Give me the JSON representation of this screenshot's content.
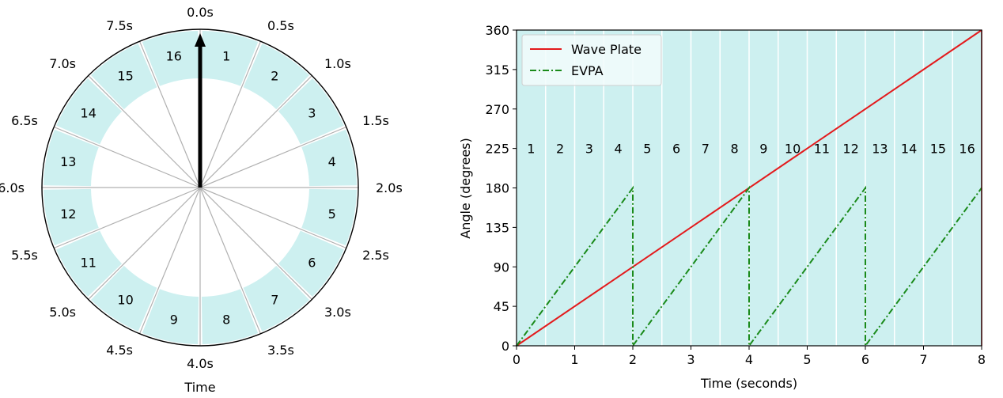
{
  "colors": {
    "segment_fill": "#cdf0f0",
    "wave_plate": "#e31a1c",
    "evpa": "#1a8a1a",
    "spoke": "#b0b0b0",
    "divider": "#ffffff",
    "frame": "#000000"
  },
  "chart_data": [
    {
      "type": "polar",
      "xlabel": "Time",
      "time_labels": [
        "0.0s",
        "0.5s",
        "1.0s",
        "1.5s",
        "2.0s",
        "2.5s",
        "3.0s",
        "3.5s",
        "4.0s",
        "4.5s",
        "5.0s",
        "5.5s",
        "6.0s",
        "6.5s",
        "7.0s",
        "7.5s"
      ],
      "segments": [
        "1",
        "2",
        "3",
        "4",
        "5",
        "6",
        "7",
        "8",
        "9",
        "10",
        "11",
        "12",
        "13",
        "14",
        "15",
        "16"
      ],
      "pointer_time": 0.0,
      "period": 8
    },
    {
      "type": "line",
      "xlabel": "Time (seconds)",
      "ylabel": "Angle (degrees)",
      "xlim": [
        0,
        8
      ],
      "ylim": [
        0,
        360
      ],
      "xticks": [
        "0",
        "1",
        "2",
        "3",
        "4",
        "5",
        "6",
        "7",
        "8"
      ],
      "yticks": [
        "0",
        "45",
        "90",
        "135",
        "180",
        "225",
        "270",
        "315",
        "360"
      ],
      "band_labels": [
        "1",
        "2",
        "3",
        "4",
        "5",
        "6",
        "7",
        "8",
        "9",
        "10",
        "11",
        "12",
        "13",
        "14",
        "15",
        "16"
      ],
      "band_width": 0.5,
      "grid": false,
      "legend_position": "top-left",
      "series": [
        {
          "name": "Wave Plate",
          "style": "solid",
          "x": [
            0,
            8
          ],
          "y": [
            0,
            360
          ]
        },
        {
          "name": "EVPA",
          "style": "dash-dot",
          "x": [
            0,
            2,
            2,
            4,
            4,
            6,
            6,
            8
          ],
          "y": [
            0,
            180,
            0,
            180,
            0,
            180,
            0,
            180
          ]
        }
      ]
    }
  ]
}
